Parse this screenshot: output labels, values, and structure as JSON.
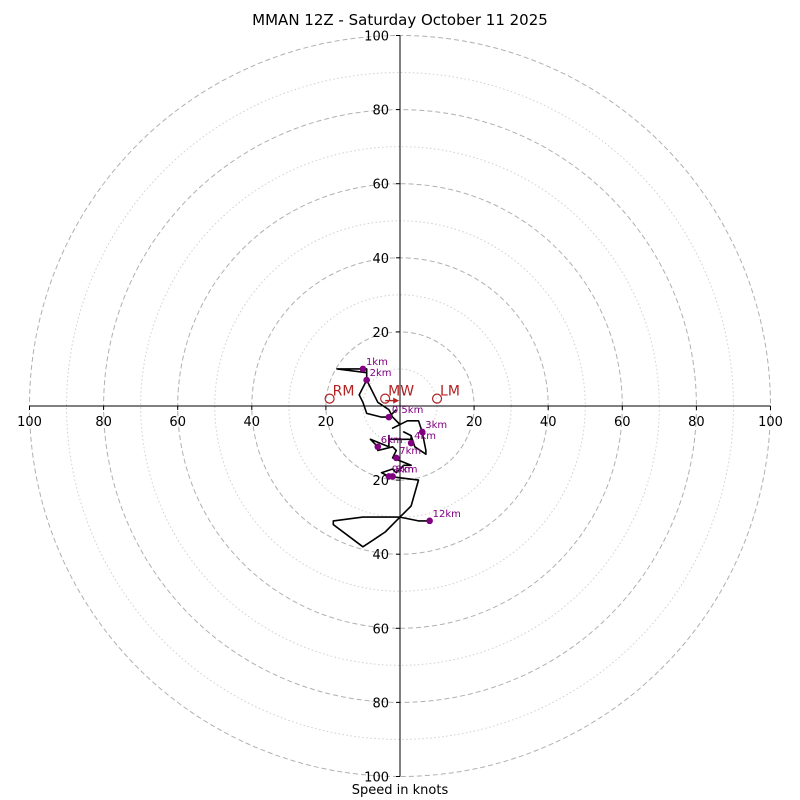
{
  "chart_data": {
    "type": "hodograph",
    "title": "MMAN 12Z - Saturday October 11 2025",
    "xlabel": "Speed in knots",
    "ylabel": "",
    "xlim": [
      -100,
      100
    ],
    "ylim": [
      -100,
      100
    ],
    "ring_major": [
      20,
      40,
      60,
      80,
      100
    ],
    "ring_minor": [
      10,
      30,
      50,
      70,
      90
    ],
    "ticks_x": [
      {
        "value": -100,
        "label": "100"
      },
      {
        "value": -80,
        "label": "80"
      },
      {
        "value": -60,
        "label": "60"
      },
      {
        "value": -40,
        "label": "40"
      },
      {
        "value": -20,
        "label": "20"
      },
      {
        "value": 20,
        "label": "20"
      },
      {
        "value": 40,
        "label": "40"
      },
      {
        "value": 60,
        "label": "60"
      },
      {
        "value": 80,
        "label": "80"
      },
      {
        "value": 100,
        "label": "100"
      }
    ],
    "ticks_y": [
      {
        "value": 100,
        "label": "100"
      },
      {
        "value": 80,
        "label": "80"
      },
      {
        "value": 60,
        "label": "60"
      },
      {
        "value": 40,
        "label": "40"
      },
      {
        "value": 20,
        "label": "20"
      },
      {
        "value": -20,
        "label": "20"
      },
      {
        "value": -40,
        "label": "40"
      },
      {
        "value": -60,
        "label": "60"
      },
      {
        "value": -80,
        "label": "80"
      },
      {
        "value": -100,
        "label": "100"
      }
    ],
    "hodograph_trace": [
      [
        -1,
        -1
      ],
      [
        -3,
        -3
      ],
      [
        -5,
        -3
      ],
      [
        -9,
        -2
      ],
      [
        -10,
        1
      ],
      [
        -11,
        3
      ],
      [
        -9,
        7
      ],
      [
        -9,
        9
      ],
      [
        -17,
        10
      ],
      [
        -13,
        10
      ],
      [
        -9,
        10
      ],
      [
        -9,
        7
      ],
      [
        -8,
        5
      ],
      [
        -6,
        1
      ],
      [
        -3,
        -1
      ],
      [
        -2,
        -3
      ],
      [
        0,
        -5
      ],
      [
        -2,
        -6
      ],
      [
        2,
        -4
      ],
      [
        5,
        -4
      ],
      [
        6,
        -7
      ],
      [
        7,
        -12
      ],
      [
        7,
        -13
      ],
      [
        4,
        -11
      ],
      [
        3,
        -8
      ],
      [
        1,
        -7
      ],
      [
        3,
        -8
      ],
      [
        3,
        -9
      ],
      [
        -3,
        -9
      ],
      [
        -3,
        -8
      ],
      [
        -3,
        -11
      ],
      [
        -8,
        -9
      ],
      [
        -6,
        -11
      ],
      [
        -6,
        -12
      ],
      [
        -2,
        -11
      ],
      [
        -1,
        -12
      ],
      [
        -2,
        -14
      ],
      [
        3,
        -16
      ],
      [
        1,
        -16
      ],
      [
        -1,
        -18
      ],
      [
        -2,
        -17
      ],
      [
        -5,
        -18
      ],
      [
        -3,
        -19
      ],
      [
        5,
        -20
      ],
      [
        3,
        -27
      ],
      [
        0,
        -30
      ],
      [
        -10,
        -30
      ],
      [
        -18,
        -31
      ],
      [
        -18,
        -32
      ],
      [
        -14,
        -35
      ],
      [
        -10,
        -38
      ],
      [
        -7,
        -36
      ],
      [
        -4,
        -34
      ],
      [
        0,
        -30
      ],
      [
        5,
        -31
      ],
      [
        8,
        -31
      ]
    ],
    "height_markers": [
      {
        "label": "0.5km",
        "u": -3,
        "v": -3
      },
      {
        "label": "1km",
        "u": -10,
        "v": 10
      },
      {
        "label": "2km",
        "u": -9,
        "v": 7
      },
      {
        "label": "3km",
        "u": 6,
        "v": -7
      },
      {
        "label": "4km",
        "u": 3,
        "v": -10
      },
      {
        "label": "6km",
        "u": -6,
        "v": -11
      },
      {
        "label": "7km",
        "u": -1,
        "v": -14
      },
      {
        "label": "8km",
        "u": -2,
        "v": -19
      },
      {
        "label": "9km",
        "u": -3,
        "v": -19
      },
      {
        "label": "12km",
        "u": 8,
        "v": -31
      }
    ],
    "storm_motions": [
      {
        "label": "RM",
        "u": -19,
        "v": 2
      },
      {
        "label": "LM",
        "u": 10,
        "v": 2
      },
      {
        "label": "MW",
        "u": -4,
        "v": 2
      }
    ],
    "colors": {
      "trace": "#000000",
      "height_marker": "#800080",
      "storm_motion": "#b22222",
      "grid": "#b0b0b0",
      "axes": "#000000"
    }
  }
}
